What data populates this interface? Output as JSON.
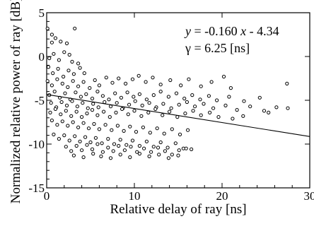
{
  "chart_data": {
    "type": "scatter",
    "xlabel": "Relative delay of ray [ns]",
    "ylabel": "Normalized relative power of ray [dB]",
    "xlim": [
      0,
      30
    ],
    "ylim": [
      -15,
      5
    ],
    "xticks": [
      0,
      10,
      20,
      30
    ],
    "yticks": [
      5,
      0,
      -5,
      -10,
      -15
    ],
    "annotation": {
      "eq_y": "y",
      "eq_eq": " = -0.160 ",
      "eq_x": "x",
      "eq_rest": " - 4.34",
      "gamma": "γ = 6.25 [ns]"
    },
    "fit_line": {
      "slope": -0.16,
      "intercept": -4.34
    },
    "series": [
      {
        "marker": "open-circle",
        "points": [
          [
            0.1,
            3.2
          ],
          [
            0.6,
            2.5
          ],
          [
            0.6,
            1.6
          ],
          [
            1.0,
            2.1
          ],
          [
            1.6,
            1.7
          ],
          [
            2.3,
            1.5
          ],
          [
            3.2,
            3.2
          ],
          [
            2.6,
            0.2
          ],
          [
            0.3,
            -0.2
          ],
          [
            0.8,
            0.3
          ],
          [
            1.4,
            -0.4
          ],
          [
            2.0,
            0.5
          ],
          [
            2.9,
            -0.6
          ],
          [
            3.6,
            -0.8
          ],
          [
            0.2,
            -1.2
          ],
          [
            0.7,
            -1.9
          ],
          [
            1.3,
            -1.4
          ],
          [
            1.9,
            -2.3
          ],
          [
            2.5,
            -1.6
          ],
          [
            3.1,
            -2.0
          ],
          [
            3.8,
            -1.3
          ],
          [
            4.3,
            -1.9
          ],
          [
            0.1,
            -2.8
          ],
          [
            0.6,
            -3.3
          ],
          [
            1.2,
            -2.6
          ],
          [
            1.8,
            -3.1
          ],
          [
            2.4,
            -3.5
          ],
          [
            3.0,
            -2.8
          ],
          [
            3.6,
            -3.4
          ],
          [
            4.2,
            -2.9
          ],
          [
            4.9,
            -3.6
          ],
          [
            5.5,
            -2.7
          ],
          [
            6.0,
            -3.3
          ],
          [
            6.8,
            -2.4
          ],
          [
            7.5,
            -3.0
          ],
          [
            8.2,
            -2.5
          ],
          [
            9.0,
            -3.1
          ],
          [
            9.8,
            -2.6
          ],
          [
            10.5,
            -2.2
          ],
          [
            11.3,
            -2.9
          ],
          [
            12.1,
            -2.4
          ],
          [
            13.0,
            -3.2
          ],
          [
            14.1,
            -2.7
          ],
          [
            15.3,
            -3.3
          ],
          [
            16.2,
            -2.6
          ],
          [
            17.6,
            -3.4
          ],
          [
            18.8,
            -2.9
          ],
          [
            21.0,
            -3.6
          ],
          [
            27.4,
            -3.1
          ],
          [
            20.2,
            -2.3
          ],
          [
            0.3,
            -4.4
          ],
          [
            0.9,
            -4.0
          ],
          [
            1.5,
            -4.7
          ],
          [
            2.1,
            -4.2
          ],
          [
            2.7,
            -4.9
          ],
          [
            3.3,
            -4.1
          ],
          [
            3.9,
            -4.6
          ],
          [
            4.5,
            -4.3
          ],
          [
            5.2,
            -4.8
          ],
          [
            5.8,
            -4.0
          ],
          [
            6.4,
            -4.5
          ],
          [
            7.1,
            -4.9
          ],
          [
            7.8,
            -4.2
          ],
          [
            8.5,
            -4.7
          ],
          [
            9.2,
            -4.1
          ],
          [
            9.9,
            -4.6
          ],
          [
            10.6,
            -4.3
          ],
          [
            11.4,
            -4.9
          ],
          [
            12.2,
            -4.4
          ],
          [
            13.0,
            -4.0
          ],
          [
            13.9,
            -4.6
          ],
          [
            14.8,
            -4.2
          ],
          [
            15.7,
            -4.8
          ],
          [
            16.6,
            -4.4
          ],
          [
            17.5,
            -4.9
          ],
          [
            18.5,
            -4.5
          ],
          [
            19.4,
            -5.0
          ],
          [
            20.8,
            -4.6
          ],
          [
            22.5,
            -5.1
          ],
          [
            24.3,
            -4.7
          ],
          [
            0.5,
            -5.3
          ],
          [
            1.1,
            -5.8
          ],
          [
            1.7,
            -5.2
          ],
          [
            2.3,
            -5.6
          ],
          [
            2.9,
            -5.1
          ],
          [
            3.5,
            -5.7
          ],
          [
            4.1,
            -5.3
          ],
          [
            4.7,
            -5.9
          ],
          [
            5.3,
            -5.4
          ],
          [
            5.9,
            -5.8
          ],
          [
            6.6,
            -5.2
          ],
          [
            7.3,
            -5.7
          ],
          [
            8.0,
            -5.3
          ],
          [
            8.7,
            -5.9
          ],
          [
            9.4,
            -5.5
          ],
          [
            10.1,
            -5.1
          ],
          [
            10.9,
            -5.6
          ],
          [
            11.7,
            -5.3
          ],
          [
            12.5,
            -5.8
          ],
          [
            13.3,
            -5.4
          ],
          [
            14.2,
            -5.9
          ],
          [
            15.1,
            -5.5
          ],
          [
            16.0,
            -5.2
          ],
          [
            16.9,
            -5.7
          ],
          [
            17.9,
            -5.4
          ],
          [
            19.0,
            -5.9
          ],
          [
            20.4,
            -5.6
          ],
          [
            21.7,
            -6.1
          ],
          [
            23.2,
            -5.7
          ],
          [
            24.8,
            -6.2
          ],
          [
            26.2,
            -5.8
          ],
          [
            27.5,
            -5.9
          ],
          [
            0.4,
            -6.4
          ],
          [
            1.0,
            -6.0
          ],
          [
            1.6,
            -6.6
          ],
          [
            2.2,
            -6.2
          ],
          [
            2.8,
            -6.8
          ],
          [
            3.4,
            -6.3
          ],
          [
            4.0,
            -6.9
          ],
          [
            4.6,
            -6.5
          ],
          [
            5.2,
            -6.1
          ],
          [
            5.8,
            -6.7
          ],
          [
            6.5,
            -6.3
          ],
          [
            7.2,
            -6.9
          ],
          [
            7.9,
            -6.4
          ],
          [
            8.6,
            -6.0
          ],
          [
            9.3,
            -6.6
          ],
          [
            10.0,
            -6.2
          ],
          [
            10.8,
            -6.8
          ],
          [
            11.6,
            -6.4
          ],
          [
            12.4,
            -6.0
          ],
          [
            13.2,
            -6.7
          ],
          [
            14.0,
            -6.3
          ],
          [
            14.9,
            -6.9
          ],
          [
            15.8,
            -6.5
          ],
          [
            16.7,
            -6.2
          ],
          [
            17.6,
            -6.7
          ],
          [
            18.6,
            -6.4
          ],
          [
            19.6,
            -6.9
          ],
          [
            21.2,
            -7.1
          ],
          [
            22.4,
            -6.8
          ],
          [
            25.3,
            -6.4
          ],
          [
            0.6,
            -7.3
          ],
          [
            1.2,
            -7.8
          ],
          [
            1.8,
            -7.4
          ],
          [
            2.4,
            -7.9
          ],
          [
            3.0,
            -7.5
          ],
          [
            3.6,
            -8.1
          ],
          [
            4.2,
            -7.6
          ],
          [
            4.8,
            -8.2
          ],
          [
            5.4,
            -7.7
          ],
          [
            6.0,
            -8.3
          ],
          [
            6.7,
            -7.8
          ],
          [
            7.4,
            -8.4
          ],
          [
            8.1,
            -7.9
          ],
          [
            8.8,
            -8.5
          ],
          [
            9.5,
            -8.0
          ],
          [
            10.2,
            -8.6
          ],
          [
            11.0,
            -8.1
          ],
          [
            11.8,
            -8.7
          ],
          [
            12.6,
            -8.2
          ],
          [
            13.4,
            -8.8
          ],
          [
            14.3,
            -8.3
          ],
          [
            15.2,
            -8.9
          ],
          [
            16.1,
            -8.4
          ],
          [
            0.8,
            -8.9
          ],
          [
            1.4,
            -9.4
          ],
          [
            2.0,
            -9.0
          ],
          [
            2.6,
            -9.6
          ],
          [
            3.2,
            -9.1
          ],
          [
            3.8,
            -9.7
          ],
          [
            4.4,
            -9.2
          ],
          [
            5.0,
            -9.8
          ],
          [
            5.6,
            -9.3
          ],
          [
            6.3,
            -9.9
          ],
          [
            7.0,
            -9.4
          ],
          [
            7.7,
            -10.0
          ],
          [
            8.4,
            -9.5
          ],
          [
            9.1,
            -10.1
          ],
          [
            9.8,
            -9.6
          ],
          [
            10.6,
            -10.2
          ],
          [
            11.4,
            -9.7
          ],
          [
            12.2,
            -10.3
          ],
          [
            13.0,
            -9.8
          ],
          [
            13.8,
            -10.4
          ],
          [
            14.7,
            -9.9
          ],
          [
            15.6,
            -10.5
          ],
          [
            2.2,
            -10.3
          ],
          [
            2.8,
            -10.8
          ],
          [
            3.4,
            -10.2
          ],
          [
            4.0,
            -10.7
          ],
          [
            4.6,
            -10.1
          ],
          [
            5.2,
            -10.6
          ],
          [
            5.8,
            -10.0
          ],
          [
            6.4,
            -10.9
          ],
          [
            7.0,
            -10.4
          ],
          [
            7.6,
            -10.8
          ],
          [
            8.2,
            -10.2
          ],
          [
            8.9,
            -10.7
          ],
          [
            9.6,
            -10.3
          ],
          [
            10.3,
            -10.9
          ],
          [
            11.1,
            -10.5
          ],
          [
            11.9,
            -10.9
          ],
          [
            12.7,
            -10.4
          ],
          [
            13.5,
            -10.8
          ],
          [
            14.3,
            -11.2
          ],
          [
            15.1,
            -10.7
          ],
          [
            15.9,
            -10.5
          ],
          [
            16.5,
            -10.6
          ],
          [
            3.1,
            -11.3
          ],
          [
            4.2,
            -11.5
          ],
          [
            5.3,
            -11.1
          ],
          [
            6.2,
            -11.4
          ],
          [
            7.3,
            -11.6
          ],
          [
            8.4,
            -11.2
          ],
          [
            9.5,
            -11.5
          ],
          [
            10.6,
            -11.1
          ],
          [
            11.7,
            -11.4
          ],
          [
            12.8,
            -11.2
          ],
          [
            13.9,
            -11.6
          ],
          [
            15.0,
            -11.3
          ]
        ]
      }
    ]
  }
}
